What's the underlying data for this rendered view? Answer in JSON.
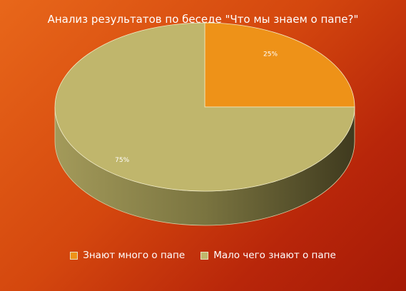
{
  "chart_data": {
    "type": "pie",
    "title": "Анализ результатов по беседе \"Что мы знаем о папе?\"",
    "series": [
      {
        "name": "",
        "slices": [
          {
            "label": "Знают много о папе",
            "value": 25,
            "data_label": "25%",
            "color": "#ee9218"
          },
          {
            "label": "Мало чего знают о папе",
            "value": 75,
            "data_label": "75%",
            "color": "#c0b66c"
          }
        ]
      }
    ],
    "legend": "bottom",
    "three_d": true
  }
}
